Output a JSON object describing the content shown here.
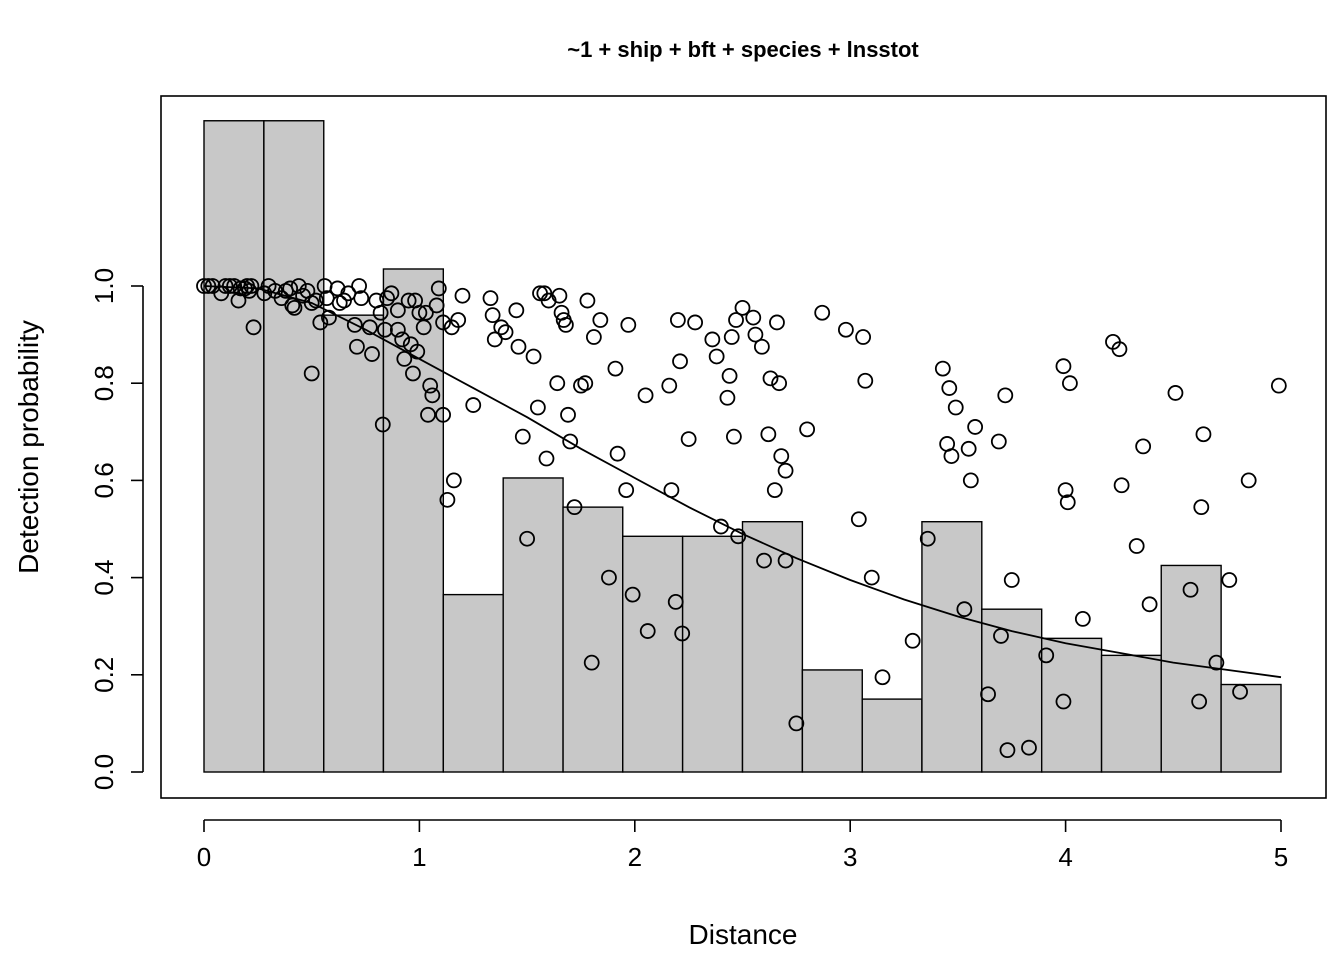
{
  "chart_data": {
    "type": "bar",
    "title": "~1 + ship + bft + species + lnsstot",
    "xlabel": "Distance",
    "ylabel": "Detection probability",
    "xlim": [
      -0.2,
      5.2
    ],
    "ylim": [
      -0.05,
      1.4
    ],
    "x_ticks": [
      0,
      1,
      2,
      3,
      4,
      5
    ],
    "x_tick_labels": [
      "0",
      "1",
      "2",
      "3",
      "4",
      "5"
    ],
    "y_ticks": [
      0.0,
      0.2,
      0.4,
      0.6,
      0.8,
      1.0
    ],
    "y_tick_labels": [
      "0.0",
      "0.2",
      "0.4",
      "0.6",
      "0.8",
      "1.0"
    ],
    "histogram": {
      "breaks": [
        0,
        0.278,
        0.556,
        0.833,
        1.111,
        1.389,
        1.667,
        1.944,
        2.222,
        2.5,
        2.778,
        3.056,
        3.333,
        3.611,
        3.889,
        4.167,
        4.444,
        4.722,
        5.0
      ],
      "heights": [
        1.34,
        1.34,
        0.94,
        1.035,
        0.365,
        0.605,
        0.545,
        0.485,
        0.485,
        0.515,
        0.21,
        0.15,
        0.515,
        0.335,
        0.275,
        0.24,
        0.425,
        0.18
      ]
    },
    "detection_curve": {
      "x": [
        0,
        0.25,
        0.5,
        0.75,
        1.0,
        1.25,
        1.5,
        1.75,
        2.0,
        2.25,
        2.5,
        2.75,
        3.0,
        3.25,
        3.5,
        3.75,
        4.0,
        4.25,
        4.5,
        4.75,
        5.0
      ],
      "y": [
        1.0,
        0.995,
        0.965,
        0.91,
        0.85,
        0.79,
        0.73,
        0.665,
        0.605,
        0.545,
        0.49,
        0.44,
        0.395,
        0.355,
        0.32,
        0.29,
        0.265,
        0.245,
        0.225,
        0.21,
        0.195
      ]
    },
    "points": [
      [
        0.0,
        1.0
      ],
      [
        0.02,
        1.0
      ],
      [
        0.04,
        1.0
      ],
      [
        0.08,
        0.985
      ],
      [
        0.1,
        1.0
      ],
      [
        0.12,
        1.0
      ],
      [
        0.14,
        1.0
      ],
      [
        0.16,
        0.97
      ],
      [
        0.17,
        0.995
      ],
      [
        0.19,
        0.995
      ],
      [
        0.2,
        1.0
      ],
      [
        0.21,
        0.99
      ],
      [
        0.22,
        1.0
      ],
      [
        0.23,
        0.915
      ],
      [
        0.28,
        0.985
      ],
      [
        0.3,
        1.0
      ],
      [
        0.33,
        0.99
      ],
      [
        0.36,
        0.975
      ],
      [
        0.38,
        0.99
      ],
      [
        0.4,
        0.995
      ],
      [
        0.41,
        0.96
      ],
      [
        0.42,
        0.955
      ],
      [
        0.44,
        1.0
      ],
      [
        0.46,
        0.98
      ],
      [
        0.48,
        0.99
      ],
      [
        0.5,
        0.82
      ],
      [
        0.5,
        0.965
      ],
      [
        0.52,
        0.97
      ],
      [
        0.54,
        0.925
      ],
      [
        0.56,
        1.0
      ],
      [
        0.57,
        0.975
      ],
      [
        0.58,
        0.935
      ],
      [
        0.62,
        0.995
      ],
      [
        0.63,
        0.965
      ],
      [
        0.65,
        0.97
      ],
      [
        0.67,
        0.985
      ],
      [
        0.7,
        0.92
      ],
      [
        0.71,
        0.875
      ],
      [
        0.72,
        1.0
      ],
      [
        0.73,
        0.975
      ],
      [
        0.77,
        0.915
      ],
      [
        0.78,
        0.86
      ],
      [
        0.8,
        0.97
      ],
      [
        0.82,
        0.945
      ],
      [
        0.83,
        0.715
      ],
      [
        0.84,
        0.91
      ],
      [
        0.85,
        0.975
      ],
      [
        0.87,
        0.985
      ],
      [
        0.9,
        0.95
      ],
      [
        0.9,
        0.91
      ],
      [
        0.92,
        0.89
      ],
      [
        0.93,
        0.85
      ],
      [
        0.95,
        0.97
      ],
      [
        0.96,
        0.88
      ],
      [
        0.97,
        0.82
      ],
      [
        0.98,
        0.97
      ],
      [
        0.99,
        0.865
      ],
      [
        1.0,
        0.945
      ],
      [
        1.02,
        0.915
      ],
      [
        1.03,
        0.945
      ],
      [
        1.04,
        0.735
      ],
      [
        1.05,
        0.795
      ],
      [
        1.06,
        0.775
      ],
      [
        1.08,
        0.96
      ],
      [
        1.09,
        0.995
      ],
      [
        1.11,
        0.925
      ],
      [
        1.11,
        0.735
      ],
      [
        1.13,
        0.56
      ],
      [
        1.15,
        0.915
      ],
      [
        1.16,
        0.6
      ],
      [
        1.18,
        0.93
      ],
      [
        1.2,
        0.98
      ],
      [
        1.25,
        0.755
      ],
      [
        1.33,
        0.975
      ],
      [
        1.34,
        0.94
      ],
      [
        1.35,
        0.89
      ],
      [
        1.38,
        0.915
      ],
      [
        1.4,
        0.905
      ],
      [
        1.45,
        0.95
      ],
      [
        1.46,
        0.875
      ],
      [
        1.48,
        0.69
      ],
      [
        1.5,
        0.48
      ],
      [
        1.53,
        0.855
      ],
      [
        1.55,
        0.75
      ],
      [
        1.56,
        0.985
      ],
      [
        1.58,
        0.985
      ],
      [
        1.59,
        0.645
      ],
      [
        1.6,
        0.97
      ],
      [
        1.64,
        0.8
      ],
      [
        1.65,
        0.98
      ],
      [
        1.66,
        0.945
      ],
      [
        1.67,
        0.93
      ],
      [
        1.68,
        0.92
      ],
      [
        1.69,
        0.735
      ],
      [
        1.7,
        0.68
      ],
      [
        1.72,
        0.545
      ],
      [
        1.75,
        0.795
      ],
      [
        1.77,
        0.8
      ],
      [
        1.78,
        0.97
      ],
      [
        1.8,
        0.225
      ],
      [
        1.81,
        0.895
      ],
      [
        1.84,
        0.93
      ],
      [
        1.88,
        0.4
      ],
      [
        1.91,
        0.83
      ],
      [
        1.92,
        0.655
      ],
      [
        1.96,
        0.58
      ],
      [
        1.97,
        0.92
      ],
      [
        1.99,
        0.365
      ],
      [
        2.05,
        0.775
      ],
      [
        2.06,
        0.29
      ],
      [
        2.16,
        0.795
      ],
      [
        2.17,
        0.58
      ],
      [
        2.19,
        0.35
      ],
      [
        2.2,
        0.93
      ],
      [
        2.21,
        0.845
      ],
      [
        2.22,
        0.285
      ],
      [
        2.25,
        0.685
      ],
      [
        2.28,
        0.925
      ],
      [
        2.36,
        0.89
      ],
      [
        2.38,
        0.855
      ],
      [
        2.4,
        0.505
      ],
      [
        2.43,
        0.77
      ],
      [
        2.44,
        0.815
      ],
      [
        2.45,
        0.895
      ],
      [
        2.46,
        0.69
      ],
      [
        2.47,
        0.93
      ],
      [
        2.48,
        0.485
      ],
      [
        2.5,
        0.955
      ],
      [
        2.55,
        0.935
      ],
      [
        2.56,
        0.9
      ],
      [
        2.59,
        0.875
      ],
      [
        2.6,
        0.435
      ],
      [
        2.62,
        0.695
      ],
      [
        2.63,
        0.81
      ],
      [
        2.65,
        0.58
      ],
      [
        2.66,
        0.925
      ],
      [
        2.67,
        0.8
      ],
      [
        2.68,
        0.65
      ],
      [
        2.7,
        0.62
      ],
      [
        2.7,
        0.435
      ],
      [
        2.75,
        0.1
      ],
      [
        2.8,
        0.705
      ],
      [
        2.87,
        0.945
      ],
      [
        2.98,
        0.91
      ],
      [
        3.04,
        0.52
      ],
      [
        3.06,
        0.895
      ],
      [
        3.07,
        0.805
      ],
      [
        3.1,
        0.4
      ],
      [
        3.15,
        0.195
      ],
      [
        3.29,
        0.27
      ],
      [
        3.36,
        0.48
      ],
      [
        3.43,
        0.83
      ],
      [
        3.45,
        0.675
      ],
      [
        3.46,
        0.79
      ],
      [
        3.47,
        0.65
      ],
      [
        3.49,
        0.75
      ],
      [
        3.53,
        0.335
      ],
      [
        3.55,
        0.665
      ],
      [
        3.56,
        0.6
      ],
      [
        3.58,
        0.71
      ],
      [
        3.64,
        0.16
      ],
      [
        3.69,
        0.68
      ],
      [
        3.7,
        0.28
      ],
      [
        3.72,
        0.775
      ],
      [
        3.73,
        0.045
      ],
      [
        3.75,
        0.395
      ],
      [
        3.83,
        0.05
      ],
      [
        3.91,
        0.24
      ],
      [
        3.99,
        0.835
      ],
      [
        3.99,
        0.145
      ],
      [
        4.0,
        0.58
      ],
      [
        4.01,
        0.555
      ],
      [
        4.02,
        0.8
      ],
      [
        4.08,
        0.315
      ],
      [
        4.22,
        0.885
      ],
      [
        4.25,
        0.87
      ],
      [
        4.26,
        0.59
      ],
      [
        4.33,
        0.465
      ],
      [
        4.36,
        0.67
      ],
      [
        4.39,
        0.345
      ],
      [
        4.51,
        0.78
      ],
      [
        4.58,
        0.375
      ],
      [
        4.62,
        0.145
      ],
      [
        4.63,
        0.545
      ],
      [
        4.64,
        0.695
      ],
      [
        4.7,
        0.225
      ],
      [
        4.76,
        0.395
      ],
      [
        4.81,
        0.165
      ],
      [
        4.85,
        0.6
      ],
      [
        4.99,
        0.795
      ]
    ],
    "grid": false,
    "legend": "none"
  }
}
